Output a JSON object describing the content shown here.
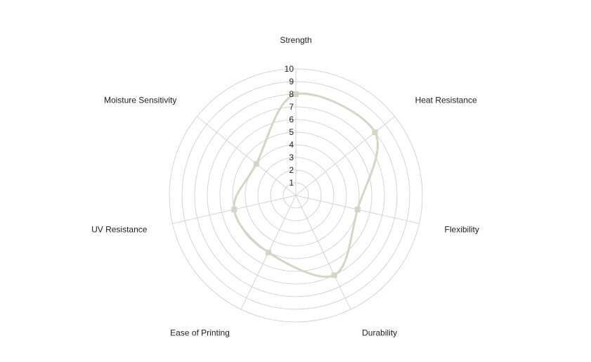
{
  "chart_data": {
    "type": "radar",
    "title": "",
    "axes": [
      "Strength",
      "Heat Resistance",
      "Flexibility",
      "Durability",
      "Ease of Printing",
      "UV Resistance",
      "Moisture Sensitivity"
    ],
    "series": [
      {
        "values": [
          8,
          8,
          5,
          7,
          5,
          5,
          4
        ],
        "color": "#d6d5c4"
      }
    ],
    "rlim": [
      0,
      10
    ],
    "ticks": [
      "1",
      "2",
      "3",
      "4",
      "5",
      "6",
      "7",
      "8",
      "9",
      "10"
    ],
    "grid": true,
    "curve": "smooth"
  }
}
